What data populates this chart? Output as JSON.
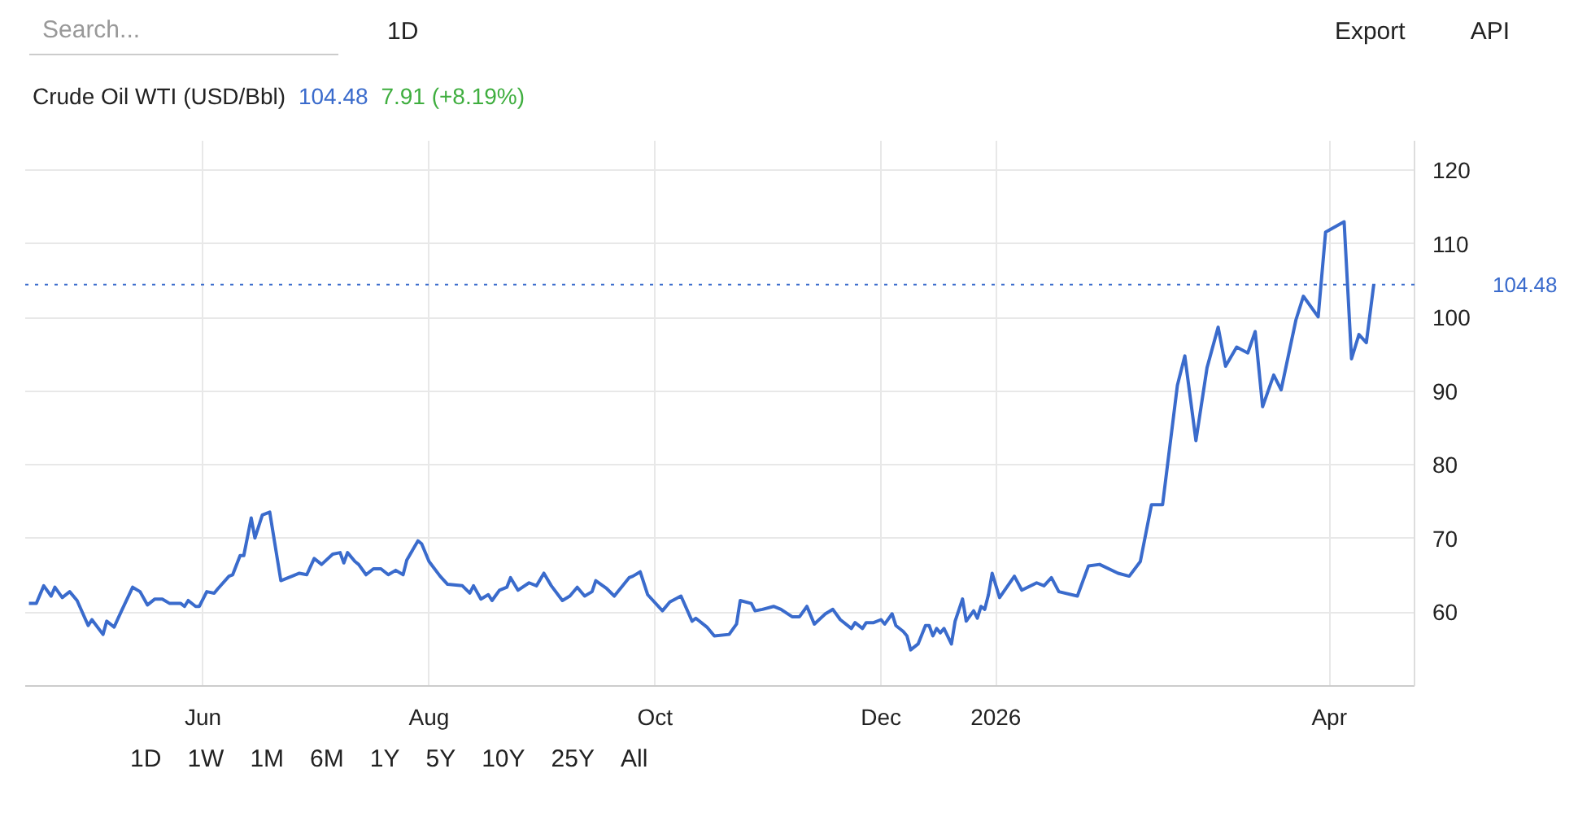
{
  "chart_data": {
    "type": "line",
    "title": "Crude Oil WTI (USD/Bbl)",
    "annotations": [
      "104.48",
      "7.91 (+8.19%)",
      "Search...",
      "1D",
      "Export",
      "API",
      "1D",
      "1W",
      "1M",
      "6M",
      "1Y",
      "5Y",
      "10Y",
      "25Y",
      "All"
    ],
    "x": [
      "2025-04-15",
      "2025-04-17",
      "2025-04-19",
      "2025-04-21",
      "2025-04-22",
      "2025-04-24",
      "2025-04-26",
      "2025-04-28",
      "2025-05-01",
      "2025-05-02",
      "2025-05-05",
      "2025-05-06",
      "2025-05-08",
      "2025-05-10",
      "2025-05-13",
      "2025-05-15",
      "2025-05-17",
      "2025-05-19",
      "2025-05-21",
      "2025-05-23",
      "2025-05-26",
      "2025-05-27",
      "2025-05-28",
      "2025-05-30",
      "2025-05-31",
      "2025-06-02",
      "2025-06-04",
      "2025-06-05",
      "2025-06-08",
      "2025-06-09",
      "2025-06-11",
      "2025-06-12",
      "2025-06-14",
      "2025-06-15",
      "2025-06-17",
      "2025-06-19",
      "2025-06-22",
      "2025-06-25",
      "2025-06-27",
      "2025-06-29",
      "2025-07-01",
      "2025-07-03",
      "2025-07-06",
      "2025-07-08",
      "2025-07-09",
      "2025-07-10",
      "2025-07-12",
      "2025-07-13",
      "2025-07-15",
      "2025-07-17",
      "2025-07-19",
      "2025-07-21",
      "2025-07-23",
      "2025-07-25",
      "2025-07-26",
      "2025-07-29",
      "2025-07-30",
      "2025-08-01",
      "2025-08-04",
      "2025-08-06",
      "2025-08-10",
      "2025-08-12",
      "2025-08-13",
      "2025-08-15",
      "2025-08-17",
      "2025-08-18",
      "2025-08-20",
      "2025-08-22",
      "2025-08-23",
      "2025-08-25",
      "2025-08-28",
      "2025-08-30",
      "2025-09-01",
      "2025-09-03",
      "2025-09-06",
      "2025-09-08",
      "2025-09-10",
      "2025-09-12",
      "2025-09-14",
      "2025-09-15",
      "2025-09-18",
      "2025-09-20",
      "2025-09-24",
      "2025-09-25",
      "2025-09-27",
      "2025-09-29",
      "2025-10-03",
      "2025-10-05",
      "2025-10-08",
      "2025-10-11",
      "2025-10-12",
      "2025-10-15",
      "2025-10-17",
      "2025-10-21",
      "2025-10-23",
      "2025-10-24",
      "2025-10-27",
      "2025-10-28",
      "2025-10-30",
      "2025-11-02",
      "2025-11-04",
      "2025-11-07",
      "2025-11-09",
      "2025-11-11",
      "2025-11-13",
      "2025-11-16",
      "2025-11-18",
      "2025-11-20",
      "2025-11-23",
      "2025-11-24",
      "2025-11-26",
      "2025-11-27",
      "2025-11-29",
      "2025-12-01",
      "2025-12-02",
      "2025-12-04",
      "2025-12-05",
      "2025-12-07",
      "2025-12-08",
      "2025-12-09",
      "2025-12-11",
      "2025-12-13",
      "2025-12-14",
      "2025-12-15",
      "2025-12-16",
      "2025-12-17",
      "2025-12-18",
      "2025-12-20",
      "2025-12-21",
      "2025-12-23",
      "2025-12-24",
      "2025-12-26",
      "2025-12-27",
      "2025-12-28",
      "2025-12-29",
      "2025-12-30",
      "2025-12-31",
      "2026-01-02",
      "2026-01-06",
      "2026-01-08",
      "2026-01-12",
      "2026-01-14",
      "2026-01-16",
      "2026-01-18",
      "2026-01-23",
      "2026-01-26",
      "2026-01-29",
      "2026-02-03",
      "2026-02-06",
      "2026-02-09",
      "2026-02-12",
      "2026-02-15",
      "2026-02-19",
      "2026-02-21",
      "2026-02-24",
      "2026-02-27",
      "2026-03-02",
      "2026-03-04",
      "2026-03-07",
      "2026-03-10",
      "2026-03-12",
      "2026-03-14",
      "2026-03-17",
      "2026-03-19",
      "2026-03-23",
      "2026-03-25",
      "2026-03-29",
      "2026-03-31",
      "2026-04-05",
      "2026-04-07",
      "2026-04-09",
      "2026-04-11",
      "2026-04-13"
    ],
    "series": [
      {
        "color": "#3a6bcc",
        "values": [
          61.2,
          61.2,
          63.6,
          62.2,
          63.4,
          62.0,
          62.8,
          61.6,
          58.2,
          59.0,
          57.0,
          58.8,
          58.0,
          60.2,
          63.4,
          62.8,
          61.0,
          61.8,
          61.8,
          61.2,
          61.2,
          60.8,
          61.6,
          60.8,
          60.8,
          62.8,
          62.6,
          63.2,
          64.9,
          65.1,
          67.7,
          67.7,
          72.8,
          70.1,
          73.2,
          73.6,
          64.3,
          64.9,
          65.3,
          65.1,
          67.3,
          66.5,
          67.9,
          68.1,
          66.7,
          68.1,
          66.9,
          66.5,
          65.1,
          65.9,
          65.9,
          65.1,
          65.7,
          65.1,
          67.1,
          69.7,
          69.3,
          66.9,
          64.9,
          63.8,
          63.6,
          62.6,
          63.6,
          61.8,
          62.4,
          61.6,
          63.0,
          63.4,
          64.7,
          63.0,
          64.0,
          63.6,
          65.3,
          63.6,
          61.6,
          62.2,
          63.4,
          62.2,
          62.8,
          64.3,
          63.2,
          62.2,
          64.7,
          64.9,
          65.5,
          62.4,
          60.2,
          61.4,
          62.2,
          58.8,
          59.2,
          58.0,
          56.8,
          57.0,
          58.4,
          61.6,
          61.2,
          60.2,
          60.4,
          60.8,
          60.4,
          59.4,
          59.4,
          60.8,
          58.4,
          59.8,
          60.4,
          59.0,
          57.8,
          58.6,
          57.8,
          58.6,
          58.6,
          59.0,
          58.4,
          59.8,
          58.2,
          57.4,
          56.8,
          54.9,
          55.7,
          58.2,
          58.2,
          56.8,
          57.8,
          57.2,
          57.8,
          55.7,
          58.8,
          61.8,
          58.8,
          60.2,
          59.2,
          60.8,
          60.4,
          62.4,
          65.3,
          62.0,
          64.9,
          63.0,
          64.0,
          63.6,
          64.7,
          62.8,
          62.2,
          66.3,
          66.5,
          65.3,
          64.9,
          66.9,
          74.6,
          74.6,
          90.8,
          94.8,
          83.3,
          93.2,
          98.7,
          93.4,
          96.0,
          95.2,
          98.1,
          87.9,
          92.2,
          90.2,
          99.7,
          102.9,
          100.1,
          111.6,
          113.0,
          94.4,
          97.7,
          96.6,
          104.48
        ]
      }
    ],
    "xlim": [
      "2025-04-14",
      "2026-04-24"
    ],
    "xticks": [
      {
        "value": "2025-06-01",
        "label": "Jun"
      },
      {
        "value": "2025-08-01",
        "label": "Aug"
      },
      {
        "value": "2025-10-01",
        "label": "Oct"
      },
      {
        "value": "2025-12-01",
        "label": "Dec"
      },
      {
        "value": "2026-01-01",
        "label": "2026"
      },
      {
        "value": "2026-04-01",
        "label": "Apr"
      }
    ],
    "ylim": [
      50,
      124
    ],
    "yticks": [
      {
        "value": 50,
        "label": null
      },
      60,
      70,
      80,
      90,
      100,
      110,
      120
    ],
    "ref_lines": [
      {
        "axis": "y",
        "value": 104.48,
        "label": "104.48",
        "color": "#3a6bcc",
        "line_style": "dotted"
      }
    ],
    "grid": true,
    "marker": "none",
    "line_style": "solid"
  }
}
